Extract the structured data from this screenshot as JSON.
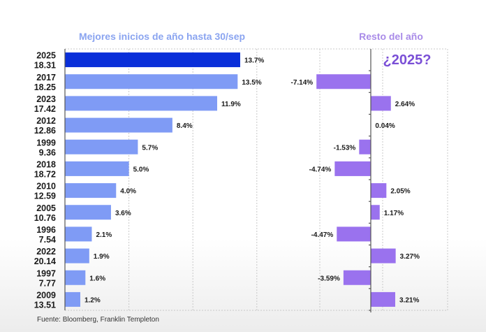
{
  "chart_data": [
    {
      "type": "bar",
      "orientation": "horizontal",
      "title": "Mejores inicios de año hasta 30/sep",
      "categories": [
        {
          "year": "2025",
          "sub": "18.31"
        },
        {
          "year": "2017",
          "sub": "18.25"
        },
        {
          "year": "2023",
          "sub": "17.42"
        },
        {
          "year": "2012",
          "sub": "12.86"
        },
        {
          "year": "1999",
          "sub": "9.36"
        },
        {
          "year": "2018",
          "sub": "18.72"
        },
        {
          "year": "2010",
          "sub": "12.59"
        },
        {
          "year": "2005",
          "sub": "10.76"
        },
        {
          "year": "1996",
          "sub": "7.54"
        },
        {
          "year": "2022",
          "sub": "20.14"
        },
        {
          "year": "1997",
          "sub": "7.77"
        },
        {
          "year": "2009",
          "sub": "13.51"
        }
      ],
      "values": [
        13.7,
        13.5,
        11.9,
        8.4,
        5.7,
        5.0,
        4.0,
        3.6,
        2.1,
        1.9,
        1.6,
        1.2
      ],
      "value_labels": [
        "13.7%",
        "13.5%",
        "11.9%",
        "8.4%",
        "5.7%",
        "5.0%",
        "4.0%",
        "3.6%",
        "2.1%",
        "1.9%",
        "1.6%",
        "1.2%"
      ],
      "highlight_index": 0,
      "colors": {
        "bar": "#7f9bf5",
        "highlight": "#0a2fd9"
      },
      "xlim": [
        0,
        15
      ],
      "grid": true,
      "unit": "%"
    },
    {
      "type": "bar",
      "orientation": "horizontal",
      "title": "Resto del año",
      "annotation": "¿2025?",
      "values": [
        null,
        -7.14,
        2.64,
        0.04,
        -1.53,
        -4.74,
        2.05,
        1.17,
        -4.47,
        3.27,
        -3.59,
        3.21
      ],
      "value_labels": [
        "",
        "-7.14%",
        "2.64%",
        "0.04%",
        "-1.53%",
        "-4.74%",
        "2.05%",
        "1.17%",
        "-4.47%",
        "3.27%",
        "-3.59%",
        "3.21%"
      ],
      "colors": {
        "bar": "#9a72ee",
        "annotation": "#7a4fd6"
      },
      "xlim": [
        -8,
        10
      ],
      "grid": true,
      "unit": "%"
    }
  ],
  "source": "Fuente: Bloomberg, Franklin Templeton"
}
